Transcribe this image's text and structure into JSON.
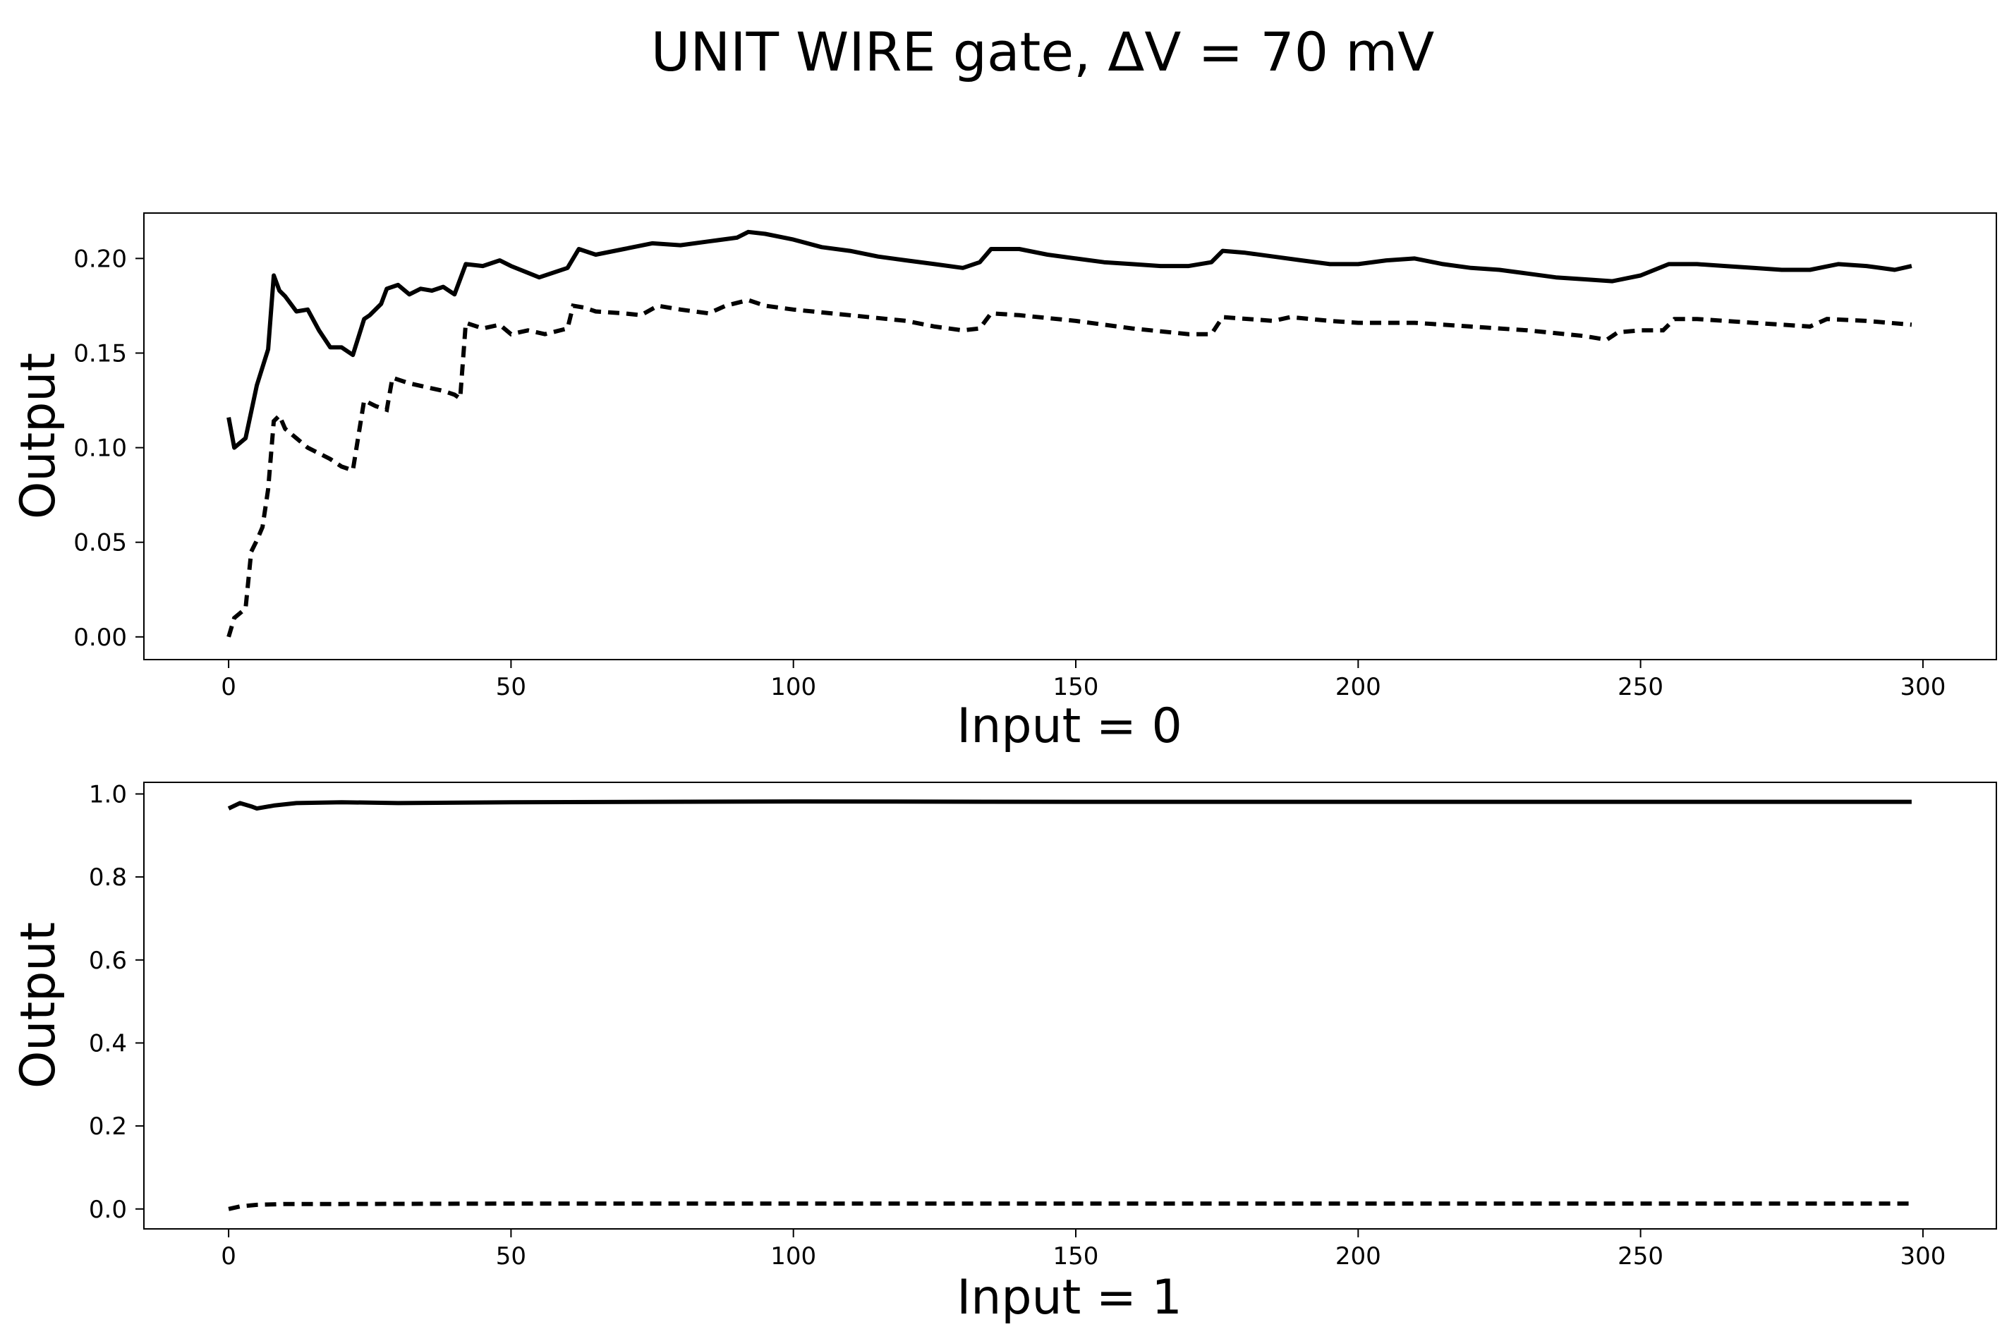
{
  "title": "UNIT WIRE gate, ΔV =  70 mV",
  "chart_data": [
    {
      "type": "line",
      "xlabel": "Input = 0",
      "ylabel": "Output",
      "xlim": [
        -15,
        313
      ],
      "ylim": [
        -0.012,
        0.224
      ],
      "xticks": [
        0,
        50,
        100,
        150,
        200,
        250,
        300
      ],
      "yticks": [
        0.0,
        0.05,
        0.1,
        0.15,
        0.2
      ],
      "ytick_labels": [
        "0.00",
        "0.05",
        "0.10",
        "0.15",
        "0.20"
      ],
      "grid": false,
      "series": [
        {
          "style": "solid",
          "x": [
            0,
            1,
            3,
            5,
            7,
            8,
            9,
            10,
            12,
            14,
            16,
            18,
            20,
            22,
            24,
            25,
            27,
            28,
            30,
            32,
            34,
            36,
            38,
            40,
            42,
            45,
            48,
            50,
            55,
            60,
            62,
            65,
            70,
            75,
            80,
            85,
            90,
            92,
            95,
            100,
            105,
            110,
            115,
            120,
            125,
            130,
            133,
            135,
            140,
            145,
            150,
            155,
            160,
            165,
            170,
            174,
            176,
            180,
            185,
            190,
            195,
            200,
            205,
            210,
            215,
            220,
            225,
            230,
            235,
            240,
            245,
            250,
            255,
            260,
            265,
            270,
            275,
            280,
            285,
            290,
            295,
            298
          ],
          "y": [
            0.116,
            0.1,
            0.105,
            0.133,
            0.152,
            0.191,
            0.183,
            0.18,
            0.172,
            0.173,
            0.162,
            0.153,
            0.153,
            0.149,
            0.168,
            0.17,
            0.176,
            0.184,
            0.186,
            0.181,
            0.184,
            0.183,
            0.185,
            0.181,
            0.197,
            0.196,
            0.199,
            0.196,
            0.19,
            0.195,
            0.205,
            0.202,
            0.205,
            0.208,
            0.207,
            0.209,
            0.211,
            0.214,
            0.213,
            0.21,
            0.206,
            0.204,
            0.201,
            0.199,
            0.197,
            0.195,
            0.198,
            0.205,
            0.205,
            0.202,
            0.2,
            0.198,
            0.197,
            0.196,
            0.196,
            0.198,
            0.204,
            0.203,
            0.201,
            0.199,
            0.197,
            0.197,
            0.199,
            0.2,
            0.197,
            0.195,
            0.194,
            0.192,
            0.19,
            0.189,
            0.188,
            0.191,
            0.197,
            0.197,
            0.196,
            0.195,
            0.194,
            0.194,
            0.197,
            0.196,
            0.194,
            0.196
          ]
        },
        {
          "style": "dashed",
          "x": [
            0,
            1,
            3,
            4,
            5,
            6,
            7,
            8,
            9,
            10,
            12,
            14,
            16,
            18,
            20,
            22,
            24,
            26,
            28,
            29,
            32,
            35,
            38,
            40,
            41,
            42,
            45,
            48,
            50,
            53,
            56,
            60,
            61,
            63,
            65,
            70,
            73,
            76,
            80,
            85,
            88,
            92,
            95,
            100,
            110,
            120,
            125,
            130,
            133,
            135,
            140,
            150,
            160,
            170,
            174,
            176,
            185,
            188,
            195,
            200,
            205,
            210,
            220,
            230,
            240,
            244,
            246,
            250,
            254,
            256,
            260,
            270,
            280,
            283,
            290,
            298
          ],
          "y": [
            0.0,
            0.01,
            0.015,
            0.045,
            0.051,
            0.058,
            0.078,
            0.114,
            0.117,
            0.11,
            0.105,
            0.1,
            0.097,
            0.094,
            0.09,
            0.088,
            0.125,
            0.122,
            0.12,
            0.137,
            0.134,
            0.132,
            0.13,
            0.128,
            0.126,
            0.166,
            0.163,
            0.165,
            0.16,
            0.162,
            0.16,
            0.163,
            0.175,
            0.174,
            0.172,
            0.171,
            0.17,
            0.175,
            0.173,
            0.171,
            0.175,
            0.178,
            0.175,
            0.173,
            0.17,
            0.167,
            0.164,
            0.162,
            0.163,
            0.171,
            0.17,
            0.167,
            0.163,
            0.16,
            0.16,
            0.169,
            0.167,
            0.169,
            0.167,
            0.166,
            0.166,
            0.166,
            0.164,
            0.162,
            0.159,
            0.157,
            0.161,
            0.162,
            0.162,
            0.168,
            0.168,
            0.166,
            0.164,
            0.168,
            0.167,
            0.165
          ]
        }
      ]
    },
    {
      "type": "line",
      "xlabel": "Input = 1",
      "ylabel": "Output",
      "xlim": [
        -15,
        313
      ],
      "ylim": [
        -0.048,
        1.028
      ],
      "xticks": [
        0,
        50,
        100,
        150,
        200,
        250,
        300
      ],
      "yticks": [
        0.0,
        0.2,
        0.4,
        0.6,
        0.8,
        1.0
      ],
      "ytick_labels": [
        "0.0",
        "0.2",
        "0.4",
        "0.6",
        "0.8",
        "1.0"
      ],
      "grid": false,
      "series": [
        {
          "style": "solid",
          "x": [
            0,
            2,
            4,
            5,
            8,
            12,
            20,
            30,
            50,
            100,
            150,
            200,
            250,
            298
          ],
          "y": [
            0.965,
            0.978,
            0.97,
            0.965,
            0.972,
            0.978,
            0.98,
            0.978,
            0.98,
            0.982,
            0.981,
            0.981,
            0.981,
            0.981
          ],
          "name": ""
        },
        {
          "style": "dashed",
          "x": [
            0,
            2,
            5,
            10,
            20,
            50,
            100,
            150,
            200,
            250,
            298
          ],
          "y": [
            0.0,
            0.006,
            0.01,
            0.012,
            0.012,
            0.013,
            0.013,
            0.013,
            0.013,
            0.013,
            0.013
          ],
          "name": ""
        }
      ]
    }
  ]
}
